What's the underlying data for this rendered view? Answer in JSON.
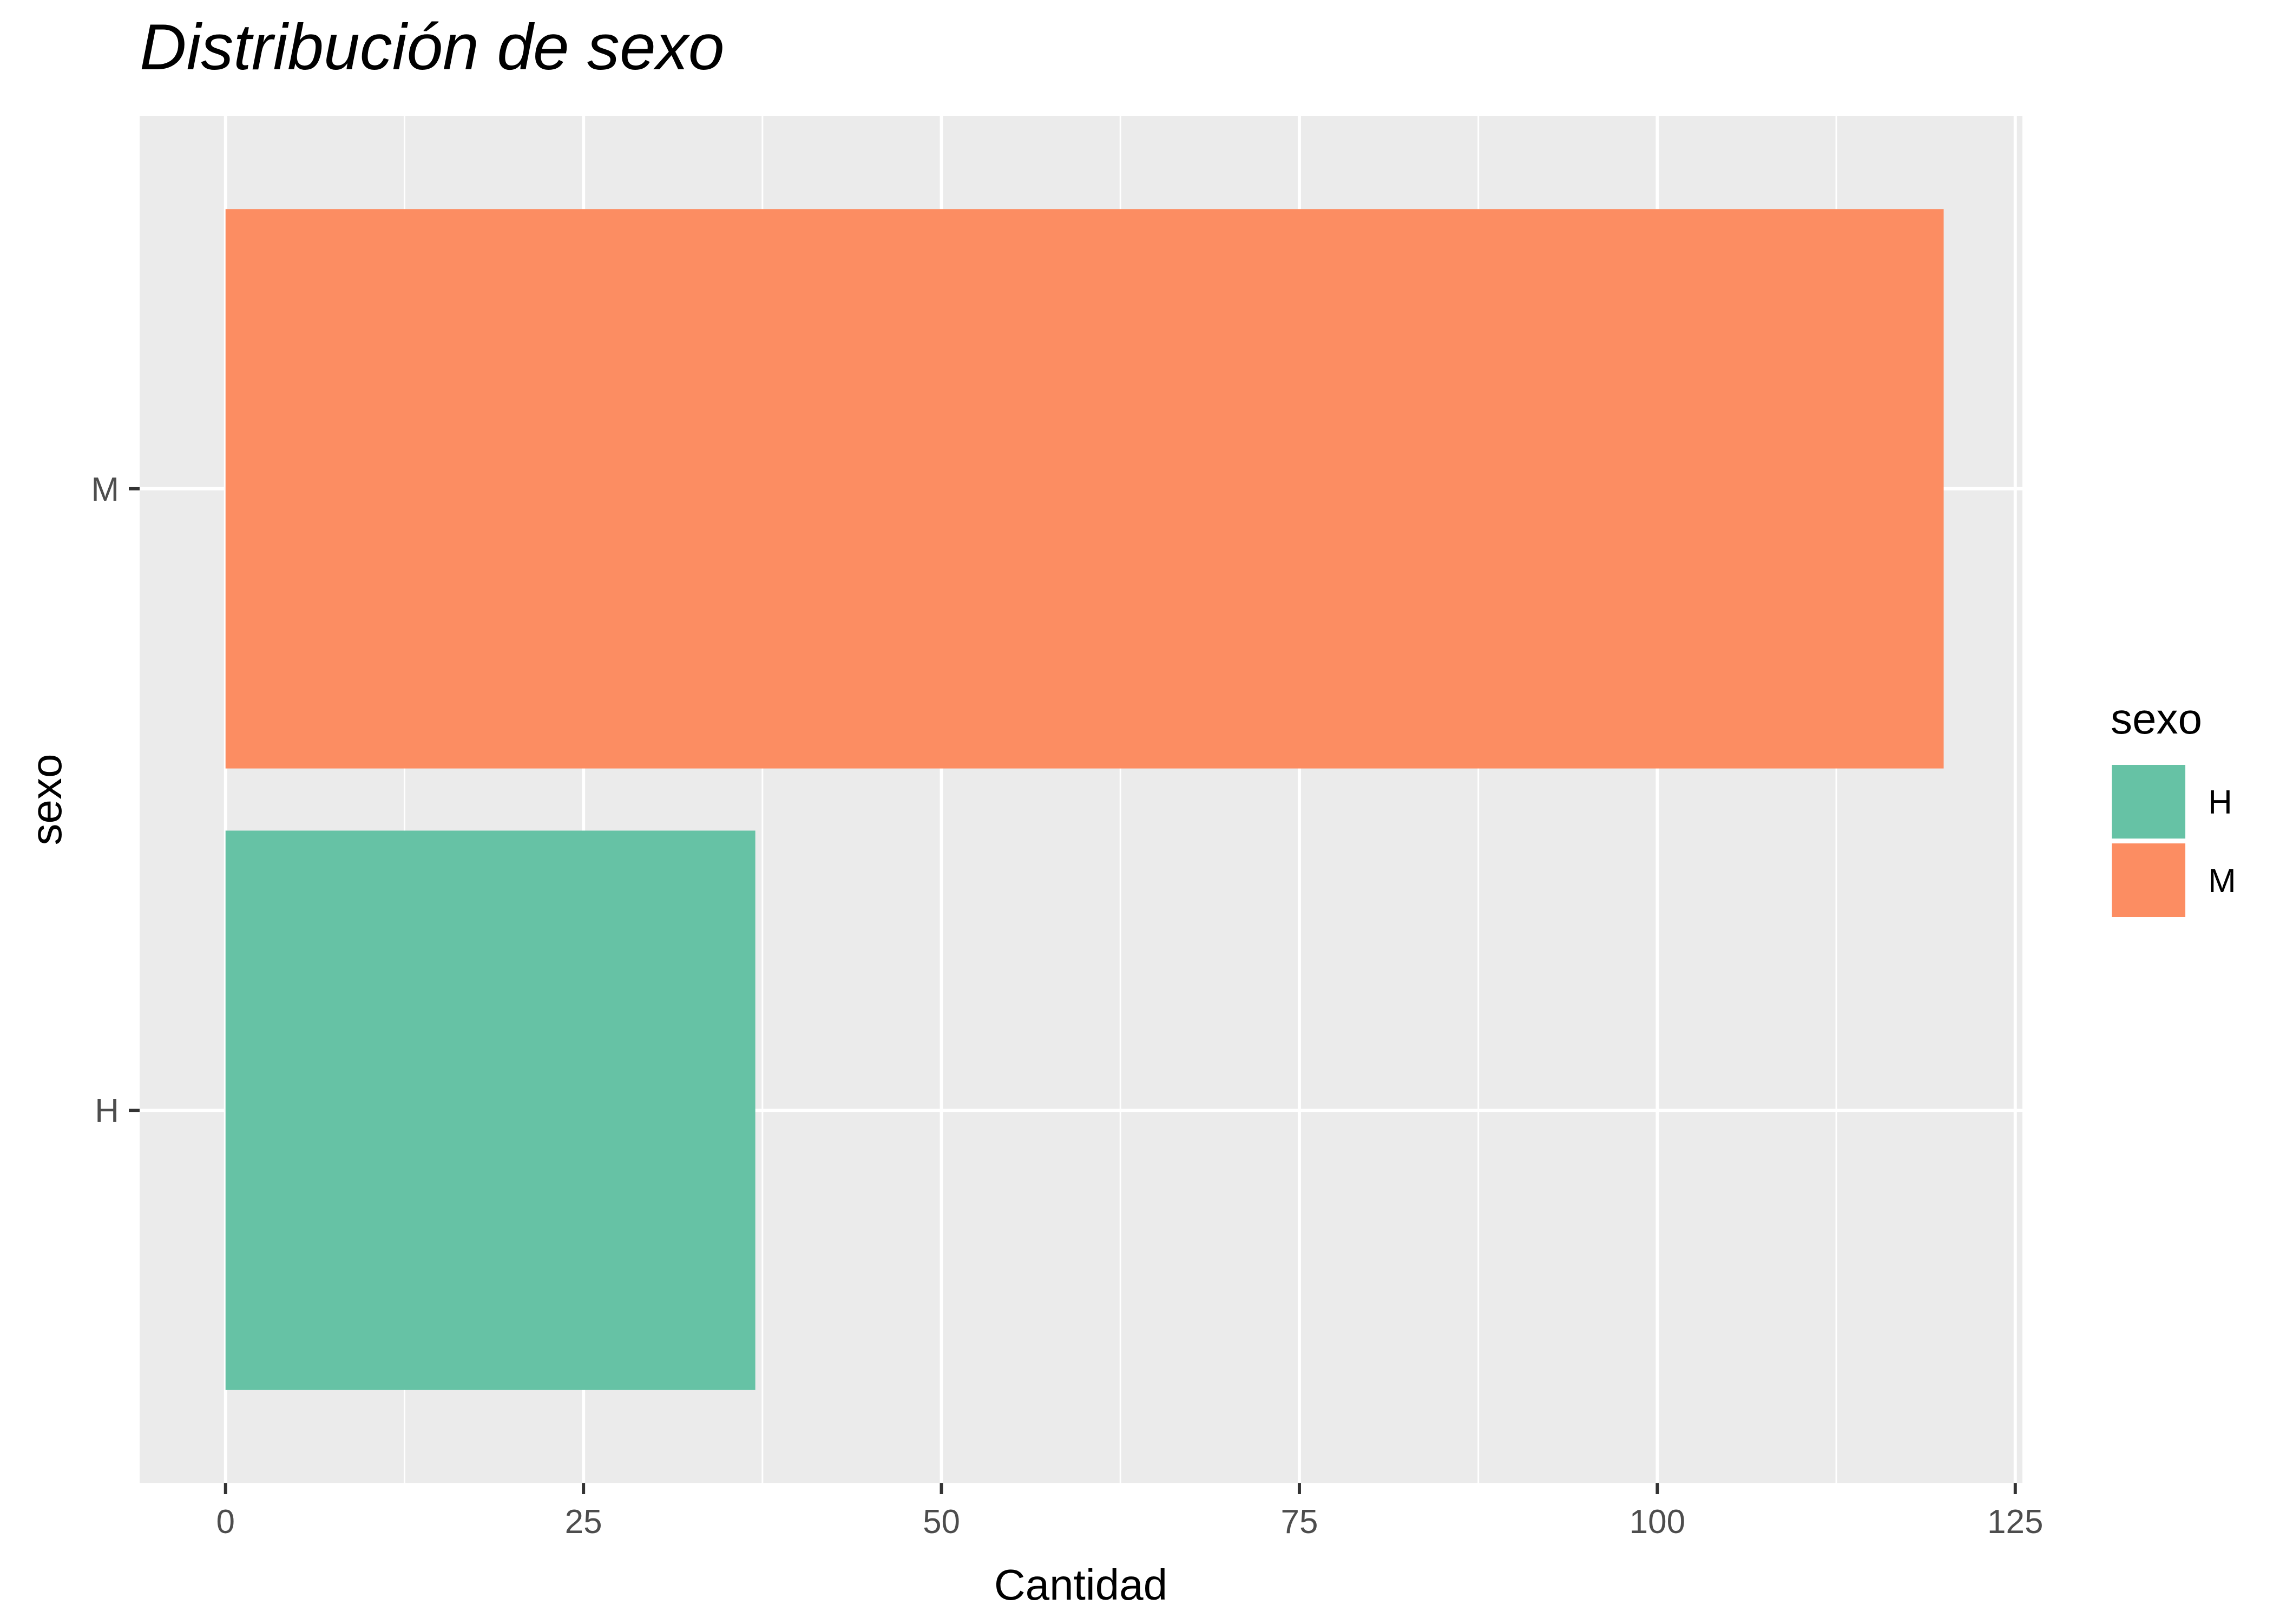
{
  "chart_data": {
    "type": "bar",
    "orientation": "horizontal",
    "title": "Distribución de sexo",
    "xlabel": "Cantidad",
    "ylabel": "sexo",
    "categories": [
      "H",
      "M"
    ],
    "values": [
      37,
      120
    ],
    "colors": [
      "#66c2a5",
      "#fc8d62"
    ],
    "xlim": [
      -6,
      125.5
    ],
    "xticks": [
      0,
      25,
      50,
      75,
      100,
      125
    ],
    "x_minor_ticks": [
      12.5,
      37.5,
      62.5,
      87.5,
      112.5
    ],
    "grid": true,
    "legend": {
      "title": "sexo",
      "placement": "right",
      "entries": [
        {
          "label": "H",
          "color": "#66c2a5"
        },
        {
          "label": "M",
          "color": "#fc8d62"
        }
      ]
    },
    "panel_background": "#ebebeb"
  }
}
